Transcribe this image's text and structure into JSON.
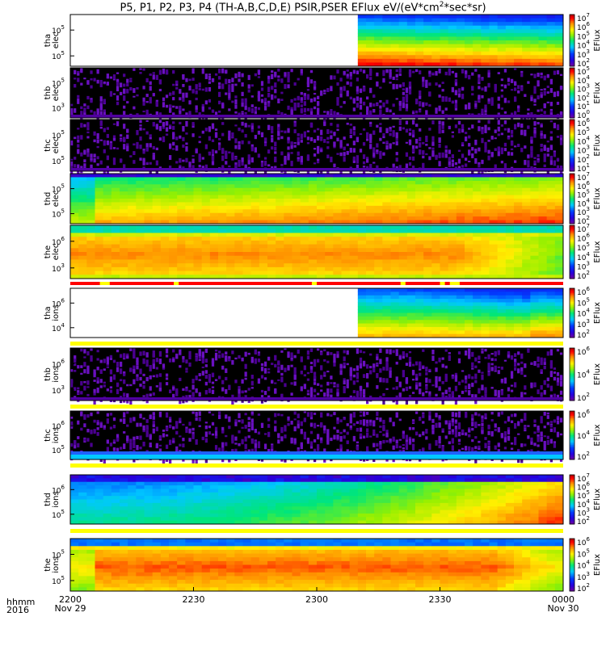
{
  "title": {
    "prefix": "P5, P1, P2, P3, P4 (TH-A,B,C,D,E) PSIR,PSER EFlux eV/(eV*cm",
    "sup": "2",
    "suffix": "*sec*sr)"
  },
  "footer": {
    "time_label": "hhmm",
    "year_label": "2016"
  },
  "colors": {
    "flag_red": "#ff0000",
    "flag_yellow": "#ffff00",
    "frame": "#000000"
  },
  "chart_data": {
    "type": "heatmap",
    "x_axis": {
      "ticks": [
        {
          "value": "2200",
          "sub": "Nov 29"
        },
        {
          "value": "2230",
          "sub": ""
        },
        {
          "value": "2300",
          "sub": ""
        },
        {
          "value": "2330",
          "sub": ""
        },
        {
          "value": "0000",
          "sub": "Nov 30"
        }
      ]
    },
    "colorbar_label": "EFlux",
    "panels": [
      {
        "probe": "tha",
        "species": "elec",
        "ylabel_1": "tha",
        "ylabel_2": "elec",
        "yticks": [
          {
            "base": "10",
            "exp": "5"
          },
          {
            "base": "10",
            "exp": "5"
          }
        ],
        "cbar_ticks": [
          {
            "base": "10",
            "exp": "7"
          },
          {
            "base": "10",
            "exp": "6"
          },
          {
            "base": "10",
            "exp": "5"
          },
          {
            "base": "10",
            "exp": "4"
          },
          {
            "base": "10",
            "exp": "3"
          },
          {
            "base": "10",
            "exp": "2"
          }
        ],
        "data_start_fraction": 0.58,
        "pattern": "tha_elec"
      },
      {
        "probe": "thb",
        "species": "elec",
        "ylabel_1": "thb",
        "ylabel_2": "elec",
        "yticks": [
          {
            "base": "10",
            "exp": "5"
          },
          {
            "base": "10",
            "exp": "3"
          }
        ],
        "cbar_ticks": [
          {
            "base": "10",
            "exp": "5"
          },
          {
            "base": "10",
            "exp": "4"
          },
          {
            "base": "10",
            "exp": "3"
          },
          {
            "base": "10",
            "exp": "2"
          },
          {
            "base": "10",
            "exp": "1"
          },
          {
            "base": "10",
            "exp": "0"
          }
        ],
        "pattern": "noise"
      },
      {
        "probe": "thc",
        "species": "elec",
        "ylabel_1": "thc",
        "ylabel_2": "elec",
        "yticks": [
          {
            "base": "10",
            "exp": "5"
          },
          {
            "base": "10",
            "exp": "5"
          }
        ],
        "cbar_ticks": [
          {
            "base": "10",
            "exp": "6"
          },
          {
            "base": "10",
            "exp": "5"
          },
          {
            "base": "10",
            "exp": "4"
          },
          {
            "base": "10",
            "exp": "3"
          },
          {
            "base": "10",
            "exp": "2"
          },
          {
            "base": "10",
            "exp": "1"
          }
        ],
        "pattern": "noise"
      },
      {
        "probe": "thd",
        "species": "elec",
        "ylabel_1": "thd",
        "ylabel_2": "elec",
        "yticks": [
          {
            "base": "10",
            "exp": "5"
          },
          {
            "base": "10",
            "exp": "5"
          }
        ],
        "cbar_ticks": [
          {
            "base": "10",
            "exp": "7"
          },
          {
            "base": "10",
            "exp": "6"
          },
          {
            "base": "10",
            "exp": "5"
          },
          {
            "base": "10",
            "exp": "4"
          },
          {
            "base": "10",
            "exp": "3"
          },
          {
            "base": "10",
            "exp": "2"
          }
        ],
        "pattern": "thd_elec"
      },
      {
        "probe": "the",
        "species": "elec",
        "ylabel_1": "the",
        "ylabel_2": "elec",
        "yticks": [
          {
            "base": "10",
            "exp": "6"
          },
          {
            "base": "10",
            "exp": "3"
          }
        ],
        "cbar_ticks": [
          {
            "base": "10",
            "exp": "7"
          },
          {
            "base": "10",
            "exp": "6"
          },
          {
            "base": "10",
            "exp": "5"
          },
          {
            "base": "10",
            "exp": "4"
          },
          {
            "base": "10",
            "exp": "3"
          },
          {
            "base": "10",
            "exp": "2"
          }
        ],
        "pattern": "the_elec"
      },
      {
        "probe": "tha",
        "species": "ions",
        "ylabel_1": "tha",
        "ylabel_2": "ions",
        "yticks": [
          {
            "base": "10",
            "exp": "6"
          },
          {
            "base": "10",
            "exp": "4"
          }
        ],
        "cbar_ticks": [
          {
            "base": "10",
            "exp": "6"
          },
          {
            "base": "10",
            "exp": "5"
          },
          {
            "base": "10",
            "exp": "4"
          },
          {
            "base": "10",
            "exp": "3"
          },
          {
            "base": "10",
            "exp": "2"
          }
        ],
        "data_start_fraction": 0.58,
        "pattern": "tha_ions"
      },
      {
        "probe": "thb",
        "species": "ions",
        "ylabel_1": "thb",
        "ylabel_2": "ions",
        "yticks": [
          {
            "base": "10",
            "exp": "6"
          },
          {
            "base": "10",
            "exp": "3"
          }
        ],
        "cbar_ticks": [
          {
            "base": "10",
            "exp": "6"
          },
          {
            "base": "10",
            "exp": "4"
          },
          {
            "base": "10",
            "exp": "2"
          }
        ],
        "pattern": "noise"
      },
      {
        "probe": "thc",
        "species": "ions",
        "ylabel_1": "thc",
        "ylabel_2": "ions",
        "yticks": [
          {
            "base": "10",
            "exp": "6"
          },
          {
            "base": "10",
            "exp": "5"
          }
        ],
        "cbar_ticks": [
          {
            "base": "10",
            "exp": "6"
          },
          {
            "base": "10",
            "exp": "4"
          },
          {
            "base": "10",
            "exp": "2"
          }
        ],
        "pattern": "thc_ions"
      },
      {
        "probe": "thd",
        "species": "ions",
        "ylabel_1": "thd",
        "ylabel_2": "ions",
        "yticks": [
          {
            "base": "10",
            "exp": "6"
          },
          {
            "base": "10",
            "exp": "5"
          }
        ],
        "cbar_ticks": [
          {
            "base": "10",
            "exp": "7"
          },
          {
            "base": "10",
            "exp": "6"
          },
          {
            "base": "10",
            "exp": "5"
          },
          {
            "base": "10",
            "exp": "4"
          },
          {
            "base": "10",
            "exp": "3"
          },
          {
            "base": "10",
            "exp": "2"
          }
        ],
        "pattern": "thd_ions"
      },
      {
        "probe": "the",
        "species": "ions",
        "ylabel_1": "the",
        "ylabel_2": "ions",
        "yticks": [
          {
            "base": "10",
            "exp": "5"
          },
          {
            "base": "10",
            "exp": "5"
          }
        ],
        "cbar_ticks": [
          {
            "base": "10",
            "exp": "6"
          },
          {
            "base": "10",
            "exp": "5"
          },
          {
            "base": "10",
            "exp": "4"
          },
          {
            "base": "10",
            "exp": "3"
          },
          {
            "base": "10",
            "exp": "2"
          }
        ],
        "pattern": "the_ions"
      }
    ],
    "flag_bars": [
      {
        "after_panel": 4,
        "color": "red",
        "gaps": [
          [
            0.06,
            0.08
          ],
          [
            0.21,
            0.22
          ],
          [
            0.49,
            0.5
          ],
          [
            0.67,
            0.68
          ],
          [
            0.75,
            0.76
          ],
          [
            0.77,
            0.79
          ]
        ]
      },
      {
        "after_panel": 5,
        "color": "yellow",
        "gaps": []
      },
      {
        "after_panel": 6,
        "color": "yellow",
        "gaps": []
      },
      {
        "after_panel": 7,
        "color": "yellow",
        "gaps": []
      },
      {
        "after_panel": 8,
        "color": "yellow",
        "gaps": []
      }
    ]
  }
}
